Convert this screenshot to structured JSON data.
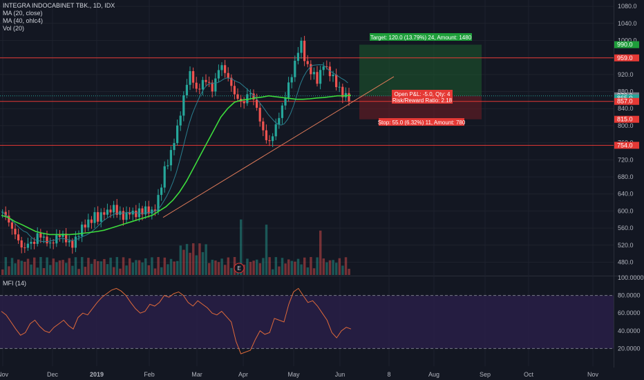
{
  "legend": {
    "symbol_line": "INTEGRA INDOCABINET TBK., 1D, IDX",
    "ma20": "MA (20, close)",
    "ma40": "MA (40, ohlc4)",
    "vol": "Vol (20)"
  },
  "mfi_label": "MFI (14)",
  "earnings_marker": "E",
  "colors": {
    "background": "#131722",
    "up": "#26a69a",
    "down": "#ef5350",
    "ma20": "#2a7f8f",
    "ma40": "#3ddc3d",
    "trendline": "#e07b5a",
    "hline": "#e53935",
    "mfi_line": "#e06a3a",
    "mfi_band": "#2a1f4a"
  },
  "position": {
    "target_label": "Target: 120.0 (13.79%) 24, Amount: 1480",
    "stop_label": "Stop: 55.0 (6.32%) 11, Amount: 780",
    "open_pl": "Open P&L: -5.0, Qty: 4",
    "risk_reward": "Risk/Reward Ratio: 2.18",
    "entry": 870,
    "target": 990,
    "stop": 815
  },
  "chart_data": {
    "type": "candlestick",
    "title": "INTEGRA INDOCABINET TBK., 1D, IDX",
    "price_axis": {
      "ticks": [
        "1080.0",
        "1040.0",
        "1000.0",
        "960.0",
        "920.0",
        "880.0",
        "840.0",
        "800.0",
        "760.0",
        "720.0",
        "680.0",
        "640.0",
        "600.0",
        "560.0",
        "520.0",
        "480.0"
      ],
      "ylim": [
        450,
        1085
      ]
    },
    "price_tags": [
      {
        "label": "990.0",
        "value": 990,
        "color": "#1e9e3a"
      },
      {
        "label": "959.0",
        "value": 959,
        "color": "#e53935"
      },
      {
        "label": "870.0",
        "value": 870,
        "color": "#787b86"
      },
      {
        "label": "865.0",
        "value": 865,
        "color": "#26a69a"
      },
      {
        "label": "857.0",
        "value": 857,
        "color": "#e53935"
      },
      {
        "label": "815.0",
        "value": 815,
        "color": "#e53935"
      },
      {
        "label": "754.0",
        "value": 754,
        "color": "#e53935"
      }
    ],
    "horizontal_lines": [
      959,
      857,
      754
    ],
    "time_axis": [
      "Nov",
      "Dec",
      "2019",
      "Feb",
      "Mar",
      "Apr",
      "May",
      "Jun",
      "8",
      "Aug",
      "Sep",
      "Oct",
      "Nov"
    ],
    "close_series": [
      598,
      585,
      560,
      545,
      520,
      510,
      530,
      520,
      545,
      540,
      530,
      520,
      535,
      545,
      540,
      525,
      520,
      540,
      560,
      570,
      575,
      590,
      580,
      600,
      595,
      610,
      600,
      590,
      585,
      600,
      590,
      598,
      600,
      605,
      595,
      610,
      650,
      700,
      720,
      760,
      800,
      850,
      900,
      930,
      880,
      890,
      910,
      900,
      880,
      930,
      940,
      920,
      900,
      870,
      860,
      850,
      880,
      870,
      840,
      800,
      770,
      760,
      790,
      820,
      850,
      890,
      920,
      960,
      1000,
      950,
      930,
      920,
      900,
      950,
      930,
      920,
      900,
      880,
      870,
      865
    ],
    "ma40_series": [
      590,
      585,
      575,
      568,
      560,
      552,
      548,
      545,
      545,
      545,
      545,
      546,
      548,
      550,
      552,
      555,
      560,
      565,
      570,
      575,
      580,
      585,
      590,
      600,
      610,
      625,
      645,
      670,
      700,
      730,
      760,
      790,
      820,
      840,
      855,
      860,
      862,
      865,
      867,
      870,
      868,
      866,
      864,
      862,
      862,
      863,
      865,
      866,
      868,
      870,
      870,
      871
    ],
    "mfi": {
      "label": "MFI (14)",
      "ticks": [
        "100.0000",
        "80.0000",
        "60.0000",
        "40.0000",
        "20.0000"
      ],
      "ylim": [
        0,
        100
      ],
      "band": [
        20,
        80
      ],
      "values": [
        62,
        58,
        50,
        42,
        35,
        38,
        48,
        52,
        45,
        40,
        38,
        44,
        48,
        52,
        46,
        42,
        55,
        60,
        58,
        65,
        72,
        78,
        82,
        86,
        88,
        85,
        80,
        72,
        65,
        60,
        62,
        70,
        68,
        72,
        80,
        78,
        82,
        84,
        80,
        72,
        68,
        74,
        70,
        66,
        60,
        58,
        62,
        56,
        50,
        28,
        14,
        16,
        18,
        30,
        40,
        36,
        38,
        54,
        52,
        50,
        70,
        84,
        88,
        80,
        72,
        74,
        68,
        60,
        52,
        38,
        32,
        40,
        44,
        42
      ]
    }
  }
}
